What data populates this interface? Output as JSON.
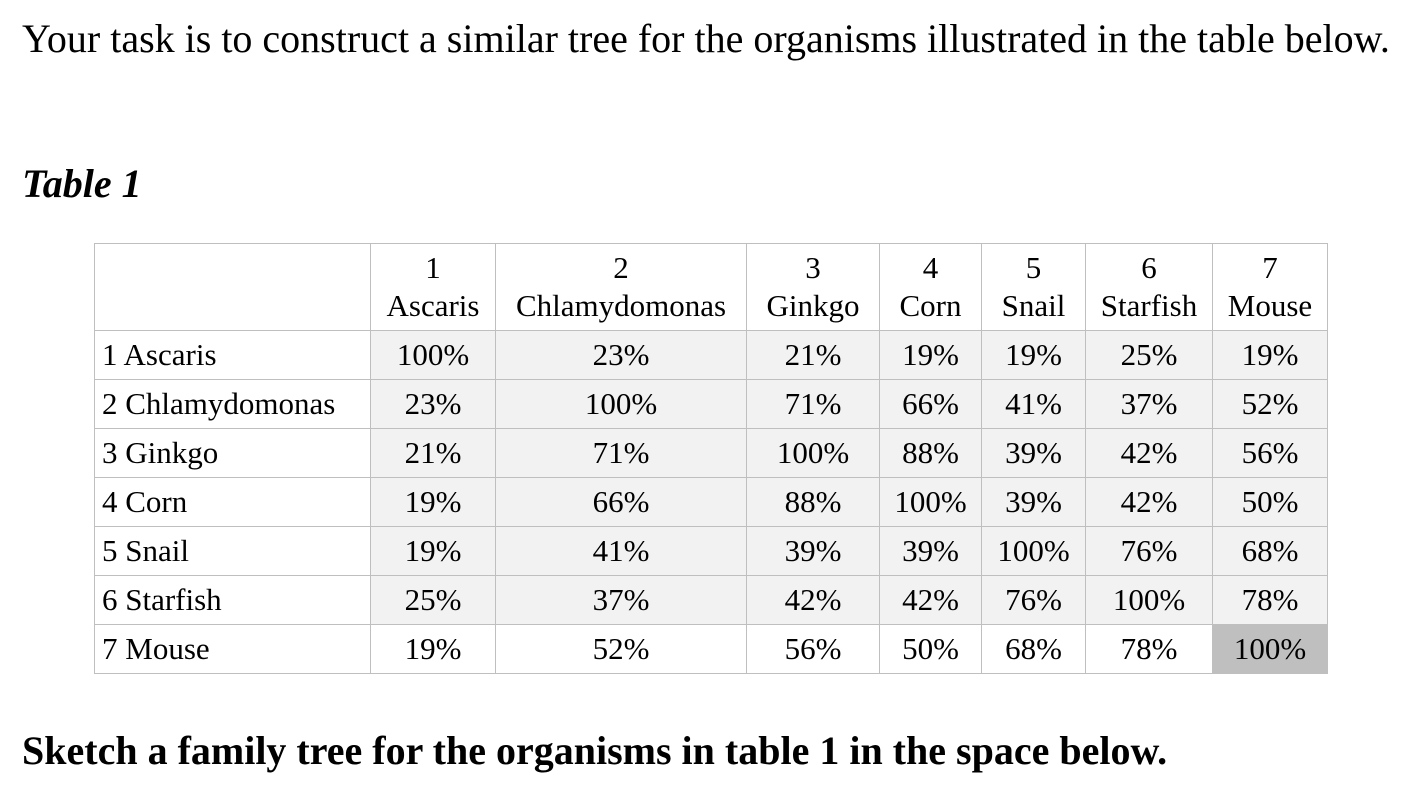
{
  "intro_text": "Your task is to construct a similar tree for the organisms illustrated in the table below.",
  "table_caption": "Table 1",
  "table": {
    "columns": [
      {
        "num": "1",
        "name": "Ascaris"
      },
      {
        "num": "2",
        "name": "Chlamydomonas"
      },
      {
        "num": "3",
        "name": "Ginkgo"
      },
      {
        "num": "4",
        "name": "Corn"
      },
      {
        "num": "5",
        "name": "Snail"
      },
      {
        "num": "6",
        "name": "Starfish"
      },
      {
        "num": "7",
        "name": "Mouse"
      }
    ],
    "rows": [
      {
        "label": "1 Ascaris",
        "values": [
          "100%",
          "23%",
          "21%",
          "19%",
          "19%",
          "25%",
          "19%"
        ]
      },
      {
        "label": "2 Chlamydomonas",
        "values": [
          "23%",
          "100%",
          "71%",
          "66%",
          "41%",
          "37%",
          "52%"
        ]
      },
      {
        "label": "3 Ginkgo",
        "values": [
          "21%",
          "71%",
          "100%",
          "88%",
          "39%",
          "42%",
          "56%"
        ]
      },
      {
        "label": "4 Corn",
        "values": [
          "19%",
          "66%",
          "88%",
          "100%",
          "39%",
          "42%",
          "50%"
        ]
      },
      {
        "label": "5 Snail",
        "values": [
          "19%",
          "41%",
          "39%",
          "39%",
          "100%",
          "76%",
          "68%"
        ]
      },
      {
        "label": "6 Starfish",
        "values": [
          "25%",
          "37%",
          "42%",
          "42%",
          "76%",
          "100%",
          "78%"
        ]
      },
      {
        "label": "7 Mouse",
        "values": [
          "19%",
          "52%",
          "56%",
          "50%",
          "68%",
          "78%",
          "100%"
        ]
      }
    ],
    "colors": {
      "diagonal_fill": "#bfbfbf",
      "upper_rows_fill": "#f2f2f2",
      "border": "#bfbfbf"
    }
  },
  "prompt_text": "Sketch a family tree for the organisms in table 1 in the space below."
}
